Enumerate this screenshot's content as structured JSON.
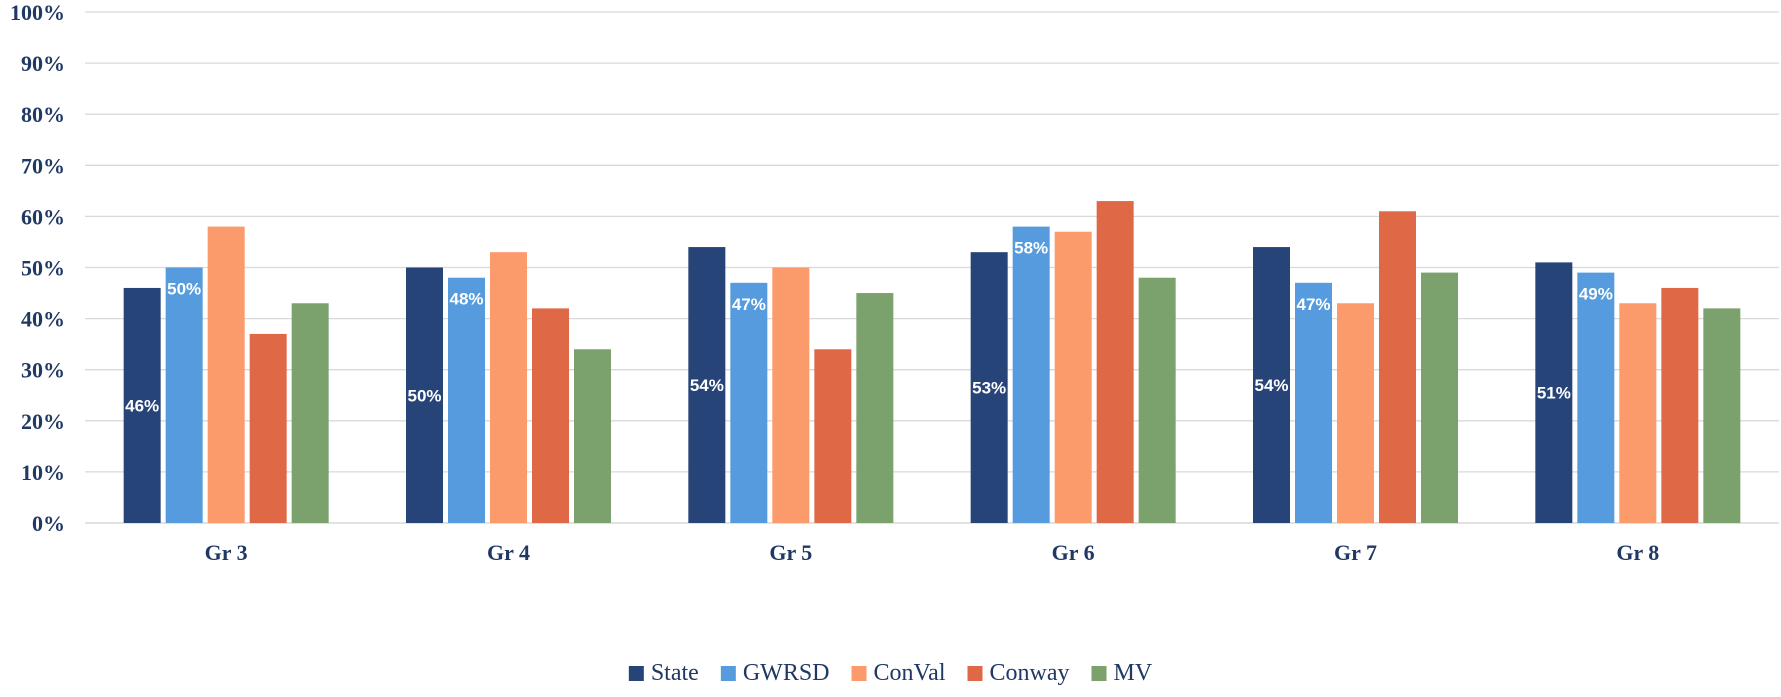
{
  "chart_data": {
    "type": "bar",
    "title": "",
    "xlabel": "",
    "ylabel": "",
    "ylim": [
      0,
      100
    ],
    "ytick_labels": [
      "0%",
      "10%",
      "20%",
      "30%",
      "40%",
      "50%",
      "60%",
      "70%",
      "80%",
      "90%",
      "100%"
    ],
    "categories": [
      "Gr 3",
      "Gr 4",
      "Gr 5",
      "Gr 6",
      "Gr 7",
      "Gr 8"
    ],
    "grid": true,
    "legend_position": "bottom",
    "series": [
      {
        "name": "State",
        "color": "#264478",
        "values": [
          46,
          50,
          54,
          53,
          54,
          51
        ],
        "data_labels": [
          "46%",
          "50%",
          "54%",
          "53%",
          "54%",
          "51%"
        ]
      },
      {
        "name": "GWRSD",
        "color": "#559bdd",
        "values": [
          50,
          48,
          47,
          58,
          47,
          49
        ],
        "data_labels": [
          "50%",
          "48%",
          "47%",
          "58%",
          "47%",
          "49%"
        ]
      },
      {
        "name": "ConVal",
        "color": "#fb9a6b",
        "values": [
          58,
          53,
          50,
          57,
          43,
          43
        ]
      },
      {
        "name": "Conway",
        "color": "#df6947",
        "values": [
          37,
          42,
          34,
          63,
          61,
          46
        ]
      },
      {
        "name": "MV",
        "color": "#7ba16c",
        "values": [
          43,
          34,
          45,
          48,
          49,
          42
        ]
      }
    ]
  }
}
